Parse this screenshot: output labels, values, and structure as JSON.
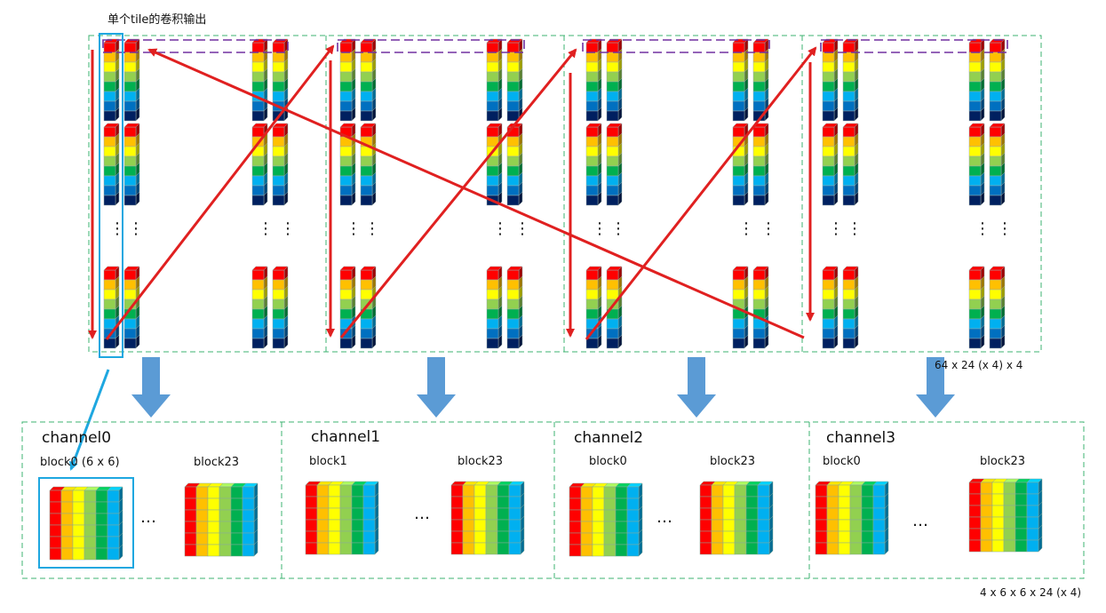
{
  "title": "单个tile的卷积输出",
  "top_dims": "64 x 24 (x 4) x 4",
  "bottom_dims": "4 x 6 x 6 x 24 (x 4)",
  "ellipsis": "…",
  "vertical_ellipsis": "⋮",
  "channels": [
    {
      "name": "channel0",
      "first_block": "block0  (6 x 6)",
      "last_block": "block23"
    },
    {
      "name": "channel1",
      "first_block": "block1",
      "last_block": "block23"
    },
    {
      "name": "channel2",
      "first_block": "block0",
      "last_block": "block23"
    },
    {
      "name": "channel3",
      "first_block": "block0",
      "last_block": "block23"
    }
  ],
  "colors": {
    "frame_dash": "#3cb371",
    "order_arrow": "#e02020",
    "row_marker": "#7030a0",
    "flow_arrow": "#5b9bd5",
    "highlight": "#1ea7e0",
    "cube_stack": [
      "#ff0000",
      "#ffc000",
      "#ffff00",
      "#92d050",
      "#00b050",
      "#00b0f0",
      "#0070c0",
      "#002060"
    ]
  }
}
